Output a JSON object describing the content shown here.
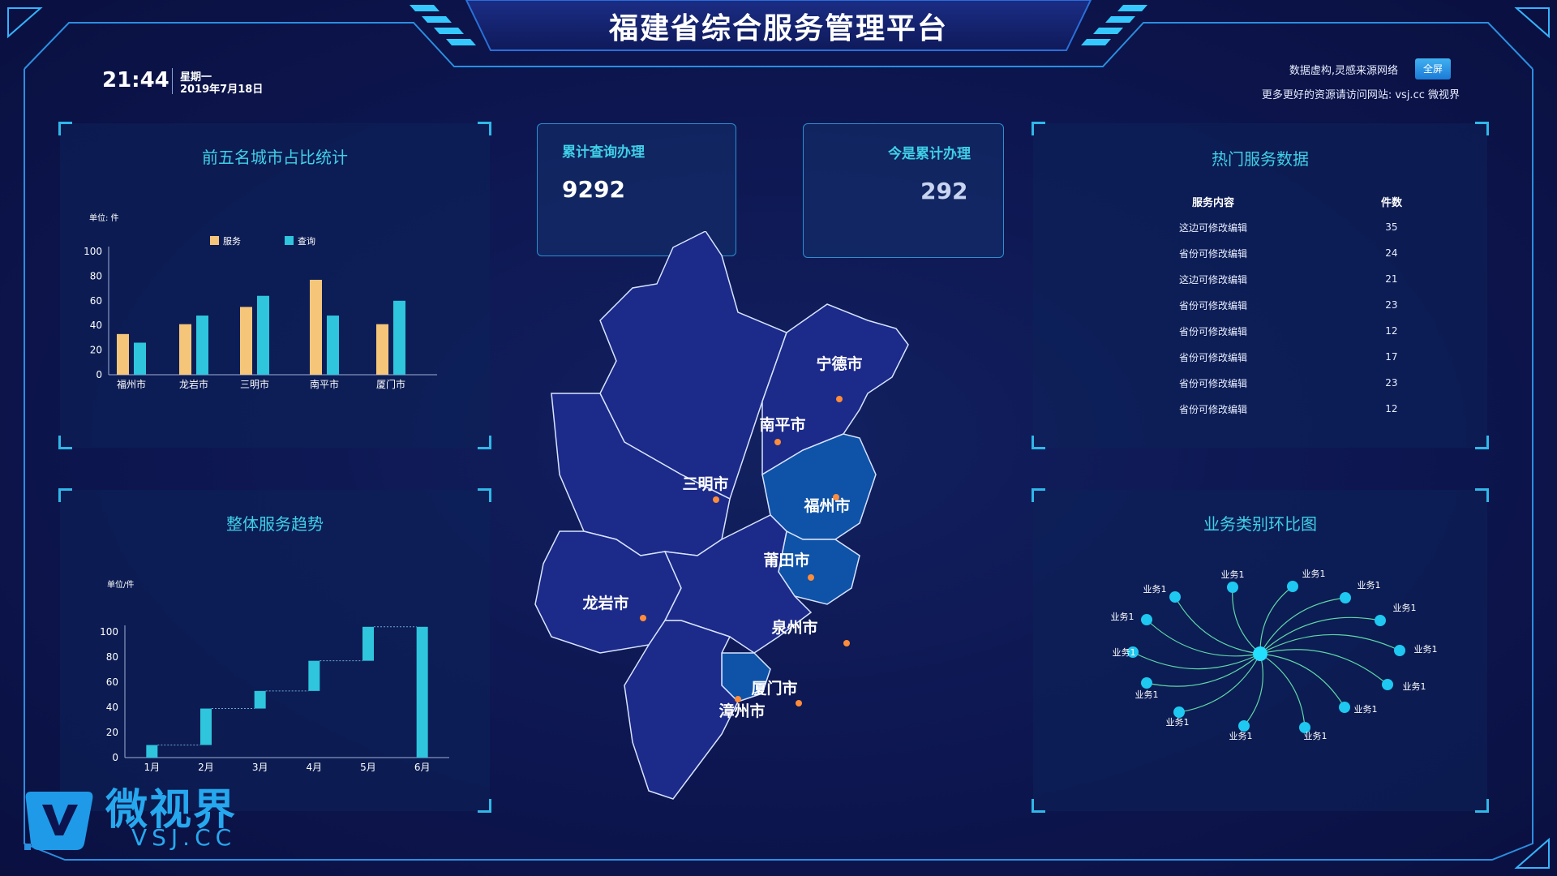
{
  "header": {
    "title": "福建省综合服务管理平台",
    "time": "21:44",
    "weekday": "星期一",
    "date": "2019年7月18日",
    "note": "数据虚构,灵感来源网络",
    "fullscreen_label": "全屏",
    "site_note": "更多更好的资源请访问网站: vsj.cc 微视界"
  },
  "stats": [
    {
      "label": "累计查询办理",
      "value": "9292"
    },
    {
      "label": "今是累计办理",
      "value": "292"
    }
  ],
  "panels": {
    "city_ratio_title": "前五名城市占比统计",
    "trend_title": "整体服务趋势",
    "hot_services_title": "热门服务数据",
    "business_ratio_title": "业务类别环比图"
  },
  "hot_services": {
    "headers": [
      "服务内容",
      "件数"
    ],
    "rows": [
      [
        "这边可修改编辑",
        "35"
      ],
      [
        "省份可修改编辑",
        "24"
      ],
      [
        "这边可修改编辑",
        "21"
      ],
      [
        "省份可修改编辑",
        "23"
      ],
      [
        "省份可修改编辑",
        "12"
      ],
      [
        "省份可修改编辑",
        "17"
      ],
      [
        "省份可修改编辑",
        "23"
      ],
      [
        "省份可修改编辑",
        "12"
      ]
    ]
  },
  "map": {
    "cities": [
      "宁德市",
      "南平市",
      "三明市",
      "福州市",
      "莆田市",
      "龙岩市",
      "泉州市",
      "厦门市",
      "漳州市"
    ],
    "colors": {
      "base": "#1c2a8a",
      "highlight": "#0e53a8",
      "dot": "#ff8c3a"
    }
  },
  "business_graph": {
    "node_label": "业务1",
    "node_count": 14
  },
  "logo": {
    "text": "微视界",
    "sub": "VSJ.CC"
  },
  "chart_data": [
    {
      "type": "bar",
      "title": "前五名城市占比统计",
      "unit_label": "单位: 件",
      "categories": [
        "福州市",
        "龙岩市",
        "三明市",
        "南平市",
        "厦门市"
      ],
      "series": [
        {
          "name": "服务",
          "values": [
            33,
            41,
            55,
            77,
            41
          ],
          "color": "#f5c67a"
        },
        {
          "name": "查询",
          "values": [
            26,
            48,
            64,
            48,
            60
          ],
          "color": "#2ec5dd"
        }
      ],
      "ylim": [
        0,
        100
      ],
      "yticks": [
        0,
        20,
        40,
        60,
        80,
        100
      ],
      "legend": "top-center"
    },
    {
      "type": "bar",
      "title": "整体服务趋势",
      "unit_label": "单位/件",
      "categories": [
        "1月",
        "2月",
        "3月",
        "4月",
        "5月",
        "6月"
      ],
      "ranges": [
        [
          0,
          10
        ],
        [
          10,
          39
        ],
        [
          39,
          53
        ],
        [
          53,
          77
        ],
        [
          77,
          104
        ],
        [
          0,
          104
        ]
      ],
      "ylim": [
        0,
        100
      ],
      "yticks": [
        0,
        20,
        40,
        60,
        80,
        100
      ],
      "color": "#2ec5dd"
    }
  ]
}
